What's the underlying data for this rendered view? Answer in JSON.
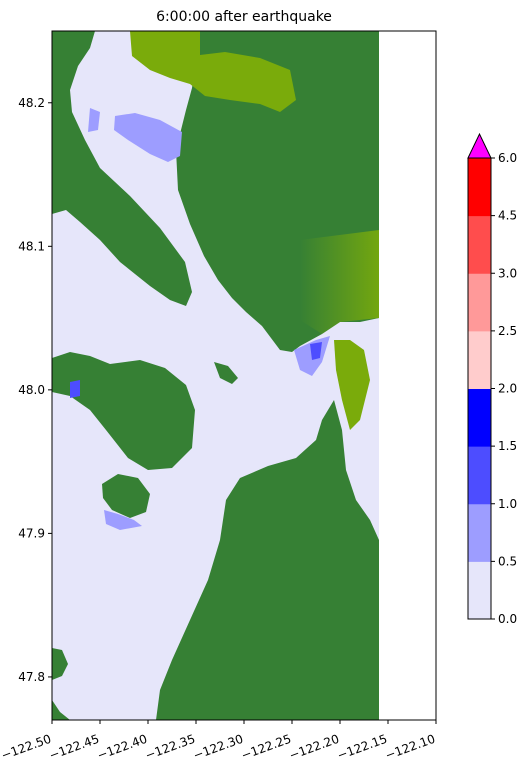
{
  "chart_data": {
    "type": "heatmap",
    "title": "6:00:00 after earthquake",
    "xlabel": "",
    "ylabel": "",
    "xlim": [
      -122.5,
      -122.1
    ],
    "ylim": [
      47.77,
      48.25
    ],
    "x_ticks": [
      -122.5,
      -122.45,
      -122.4,
      -122.35,
      -122.3,
      -122.25,
      -122.2,
      -122.15,
      -122.1
    ],
    "x_tick_labels": [
      "−122.50",
      "−122.45",
      "−122.40",
      "−122.35",
      "−122.30",
      "−122.25",
      "−122.20",
      "−122.15",
      "−122.10"
    ],
    "y_ticks": [
      47.8,
      47.9,
      48.0,
      48.1,
      48.2
    ],
    "y_tick_labels": [
      "47.8",
      "47.9",
      "48.0",
      "48.1",
      "48.2"
    ],
    "data_extent_x": [
      -122.5,
      -122.16
    ],
    "land_color": "#368034",
    "land_light_color": "#7aab0b",
    "colorbar": {
      "levels": [
        0.0,
        0.5,
        1.0,
        1.5,
        2.0,
        2.5,
        3.0,
        4.5,
        6.0
      ],
      "tick_labels": [
        "0.0",
        "0.5",
        "1.0",
        "1.5",
        "2.0",
        "2.5",
        "3.0",
        "4.5",
        "6.0"
      ],
      "colors": [
        "#e6e6fa",
        "#9d9dff",
        "#4d4dff",
        "#0000ff",
        "#ffcccc",
        "#ff9999",
        "#ff4d4d",
        "#ff0000"
      ],
      "extend_max_color": "#ff00ff",
      "extend": "max"
    }
  }
}
